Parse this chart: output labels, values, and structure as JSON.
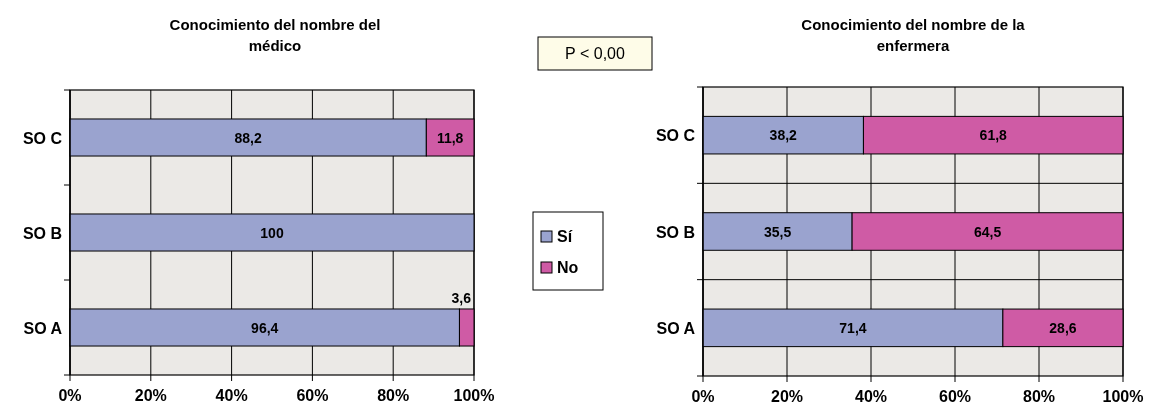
{
  "chart_data": [
    {
      "type": "bar",
      "orientation": "horizontal",
      "stacked": true,
      "title": "Conocimiento del nombre del médico",
      "categories": [
        "SO C",
        "SO B",
        "SO A"
      ],
      "series": [
        {
          "name": "Sí",
          "color": "#9aa3cf",
          "values": [
            88.2,
            100,
            96.4
          ],
          "value_labels": [
            "88,2",
            "100",
            "96,4"
          ]
        },
        {
          "name": "No",
          "color": "#cf5ba5",
          "values": [
            11.8,
            0,
            3.6
          ],
          "value_labels": [
            "11,8",
            null,
            "3,6"
          ]
        }
      ],
      "xlim": [
        0,
        100
      ],
      "xticks": [
        {
          "value": 0,
          "label": "0%"
        },
        {
          "value": 20,
          "label": "20%"
        },
        {
          "value": 40,
          "label": "40%"
        },
        {
          "value": 60,
          "label": "60%"
        },
        {
          "value": 80,
          "label": "80%"
        },
        {
          "value": 100,
          "label": "100%"
        }
      ],
      "grid": "x",
      "legend": "right",
      "annotations": [
        "P < 0,00"
      ]
    },
    {
      "type": "bar",
      "orientation": "horizontal",
      "stacked": true,
      "title": "Conocimiento del nombre de la enfermera",
      "categories": [
        "SO C",
        "SO B",
        "SO A"
      ],
      "series": [
        {
          "color": "#9aa3cf",
          "values": [
            38.2,
            35.5,
            71.4
          ],
          "value_labels": [
            "38,2",
            "35,5",
            "71,4"
          ]
        },
        {
          "color": "#cf5ba5",
          "values": [
            61.8,
            64.5,
            28.6
          ],
          "value_labels": [
            "61,8",
            "64,5",
            "28,6"
          ]
        }
      ],
      "xlim": [
        0,
        100
      ],
      "xticks": [
        {
          "value": 0,
          "label": "0%"
        },
        {
          "value": 20,
          "label": "20%"
        },
        {
          "value": 40,
          "label": "40%"
        },
        {
          "value": 60,
          "label": "60%"
        },
        {
          "value": 80,
          "label": "80%"
        },
        {
          "value": 100,
          "label": "100%"
        }
      ],
      "grid": true
    }
  ]
}
